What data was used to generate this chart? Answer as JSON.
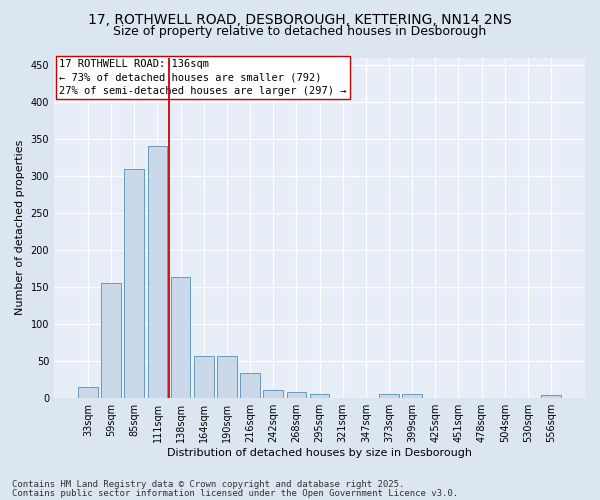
{
  "title_line1": "17, ROTHWELL ROAD, DESBOROUGH, KETTERING, NN14 2NS",
  "title_line2": "Size of property relative to detached houses in Desborough",
  "xlabel": "Distribution of detached houses by size in Desborough",
  "ylabel": "Number of detached properties",
  "categories": [
    "33sqm",
    "59sqm",
    "85sqm",
    "111sqm",
    "138sqm",
    "164sqm",
    "190sqm",
    "216sqm",
    "242sqm",
    "268sqm",
    "295sqm",
    "321sqm",
    "347sqm",
    "373sqm",
    "399sqm",
    "425sqm",
    "451sqm",
    "478sqm",
    "504sqm",
    "530sqm",
    "556sqm"
  ],
  "values": [
    15,
    155,
    309,
    341,
    163,
    57,
    57,
    33,
    10,
    8,
    5,
    0,
    0,
    5,
    5,
    0,
    0,
    0,
    0,
    0,
    4
  ],
  "bar_color": "#c9d9ea",
  "bar_edge_color": "#6699bb",
  "vline_index": 3.5,
  "vline_color": "#cc0000",
  "annotation_line1": "17 ROTHWELL ROAD: 136sqm",
  "annotation_line2": "← 73% of detached houses are smaller (792)",
  "annotation_line3": "27% of semi-detached houses are larger (297) →",
  "annotation_box_color": "#ffffff",
  "annotation_box_edge": "#cc0000",
  "ylim": [
    0,
    460
  ],
  "yticks": [
    0,
    50,
    100,
    150,
    200,
    250,
    300,
    350,
    400,
    450
  ],
  "bg_color": "#dce6f0",
  "plot_bg_color": "#e8eef8",
  "grid_color": "#ffffff",
  "footer_line1": "Contains HM Land Registry data © Crown copyright and database right 2025.",
  "footer_line2": "Contains public sector information licensed under the Open Government Licence v3.0.",
  "title_fontsize": 10,
  "subtitle_fontsize": 9,
  "axis_label_fontsize": 8,
  "tick_fontsize": 7,
  "annotation_fontsize": 7.5,
  "footer_fontsize": 6.5
}
